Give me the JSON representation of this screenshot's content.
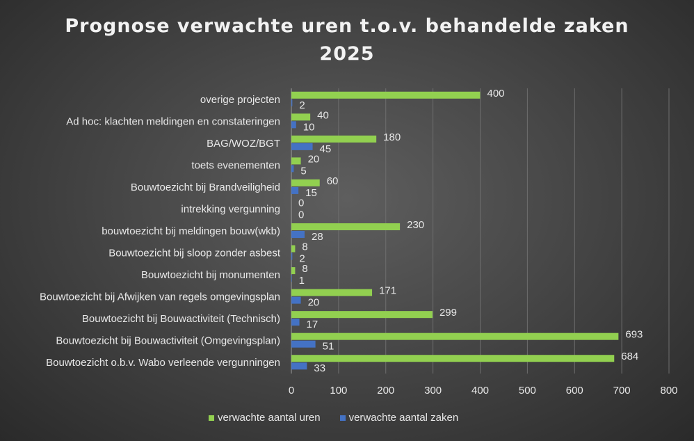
{
  "chart_data": {
    "type": "bar",
    "orientation": "horizontal",
    "title": "Prognose verwachte uren t.o.v. behandelde zaken 2025",
    "title_lines": [
      "Prognose verwachte uren t.o.v. behandelde zaken",
      "2025"
    ],
    "categories": [
      "overige projecten",
      "Ad hoc: klachten meldingen en constateringen",
      "BAG/WOZ/BGT",
      "toets evenementen",
      "Bouwtoezicht bij Brandveiligheid",
      "intrekking vergunning",
      "bouwtoezicht bij meldingen bouw(wkb)",
      "Bouwtoezicht bij sloop zonder asbest",
      "Bouwtoezicht bij monumenten",
      "Bouwtoezicht bij Afwijken van regels omgevingsplan",
      "Bouwtoezicht bij Bouwactiviteit (Technisch)",
      "Bouwtoezicht bij Bouwactiviteit (Omgevingsplan)",
      "Bouwtoezicht o.b.v. Wabo verleende vergunningen"
    ],
    "series": [
      {
        "name": "verwachte aantal uren",
        "color": "#92D050",
        "values": [
          400,
          40,
          180,
          20,
          60,
          0,
          230,
          8,
          8,
          171,
          299,
          693,
          684
        ]
      },
      {
        "name": "verwachte aantal zaken",
        "color": "#4472C4",
        "values": [
          2,
          10,
          45,
          5,
          15,
          0,
          28,
          2,
          1,
          20,
          17,
          51,
          33
        ]
      }
    ],
    "xlim": [
      0,
      800
    ],
    "xticks": [
      0,
      100,
      200,
      300,
      400,
      500,
      600,
      700,
      800
    ],
    "grid": true,
    "legend": "bottom",
    "data_labels": true
  }
}
